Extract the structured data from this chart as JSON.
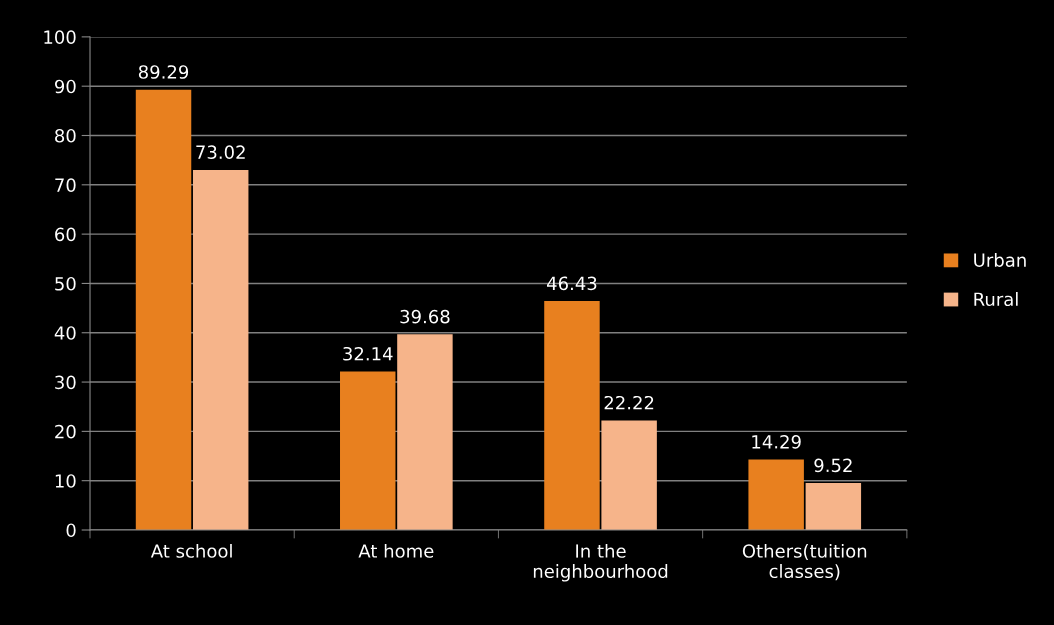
{
  "chart_data": {
    "type": "bar",
    "categories": [
      "At school",
      "At home",
      "In the\nneighbourhood",
      "Others(tuition\nclasses)"
    ],
    "series": [
      {
        "name": "Urban",
        "color": "#e8801f",
        "values": [
          89.29,
          32.14,
          46.43,
          14.29
        ]
      },
      {
        "name": "Rural",
        "color": "#f6b48a",
        "values": [
          73.02,
          39.68,
          22.22,
          9.52
        ]
      }
    ],
    "ylim": [
      0,
      100
    ],
    "yticks": [
      0,
      10,
      20,
      30,
      40,
      50,
      60,
      70,
      80,
      90,
      100
    ],
    "grid": "y",
    "legend": "right",
    "data_labels": true
  }
}
